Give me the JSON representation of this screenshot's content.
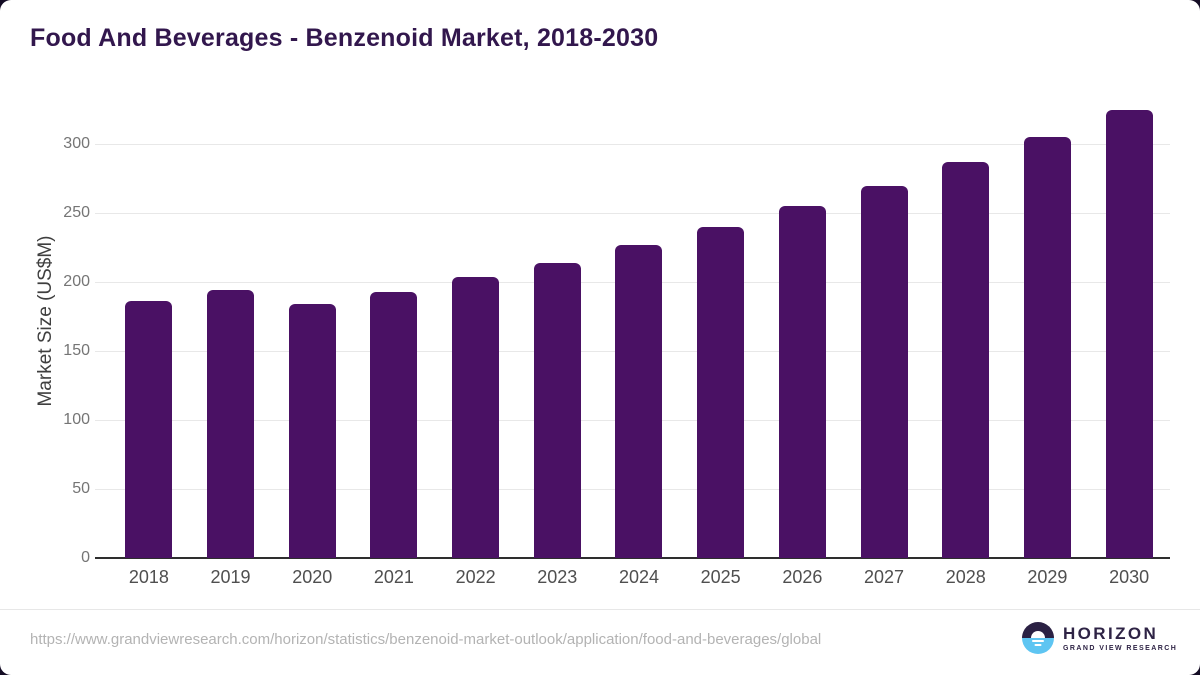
{
  "title": "Food And Beverages - Benzenoid Market, 2018-2030",
  "chart_data": {
    "type": "bar",
    "title": "Food And Beverages - Benzenoid Market, 2018-2030",
    "categories": [
      "2018",
      "2019",
      "2020",
      "2021",
      "2022",
      "2023",
      "2024",
      "2025",
      "2026",
      "2027",
      "2028",
      "2029",
      "2030"
    ],
    "values": [
      186,
      194,
      184,
      193,
      204,
      214,
      227,
      240,
      255,
      270,
      287,
      305,
      325
    ],
    "xlabel": "",
    "ylabel": "Market Size (US$M)",
    "yticks": [
      0,
      50,
      100,
      150,
      200,
      250,
      300
    ],
    "ylim": [
      0,
      332
    ],
    "grid": "horizontal",
    "legend": "none",
    "bar_color": "#4a1164"
  },
  "footer": {
    "source_url": "https://www.grandviewresearch.com/horizon/statistics/benzenoid-market-outlook/application/food-and-beverages/global",
    "logo": {
      "name": "HORIZON",
      "subtitle": "GRAND VIEW RESEARCH"
    }
  },
  "colors": {
    "title": "#32174d",
    "bar": "#4a1164",
    "gridline": "#e8e8e8",
    "axis_line": "#2e2e2e",
    "tick_label": "#757575",
    "x_label": "#4f4f4f",
    "url_text": "#b3b3b3",
    "logo_dark": "#2b2144",
    "logo_blue": "#5ec5f2",
    "outer_background": "#140c24"
  }
}
